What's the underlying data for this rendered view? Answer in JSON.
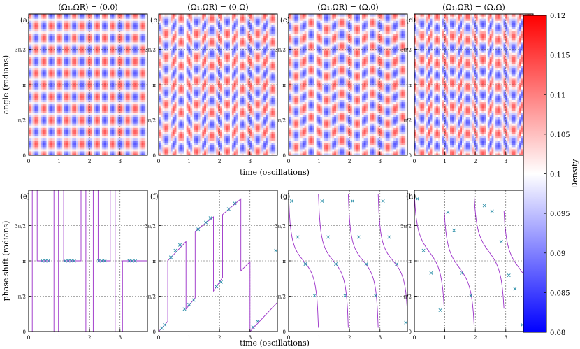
{
  "figure": {
    "panel_titles": [
      "(Ω₁,ΩR) = (0,0)",
      "(Ω₁,ΩR) = (0,Ω)",
      "(Ω₁,ΩR) = (Ω,0)",
      "(Ω₁,ΩR) = (Ω,Ω)"
    ],
    "title_parts": [
      {
        "a": "0",
        "b": "0"
      },
      {
        "a": "0",
        "b": "Ω"
      },
      {
        "a": "Ω",
        "b": "0"
      },
      {
        "a": "Ω",
        "b": "Ω"
      }
    ],
    "panel_letters_top": [
      "(a)",
      "(b)",
      "(c)",
      "(d)"
    ],
    "panel_letters_bottom": [
      "(e)",
      "(f)",
      "(g)",
      "(h)"
    ],
    "top_ylabel": "angle (radians)",
    "bottom_ylabel": "phase shift (radians)",
    "xlabel": "time (oscillations)",
    "y_tick_labels": [
      "0",
      "π/2",
      "π",
      "3π/2"
    ],
    "x_tick_labels": [
      "0",
      "1",
      "2",
      "3"
    ],
    "colorbar": {
      "label": "Density",
      "ticks": [
        "0.12",
        "0.115",
        "0.11",
        "0.105",
        "0.1",
        "0.095",
        "0.09",
        "0.085",
        "0.08"
      ],
      "min": 0.08,
      "max": 0.12,
      "color_low": "#0000ff",
      "color_mid": "#ffffff",
      "color_high": "#ff0000"
    },
    "colors": {
      "line": "#9b30c8",
      "marker": "#2a8fa8",
      "grid": "#555555"
    }
  },
  "chart_data": [
    {
      "type": "heatmap",
      "panel": "(a)",
      "xlim": [
        0,
        3.9
      ],
      "ylim": [
        0,
        6.283
      ],
      "x_period": 0.5,
      "y_period": 1.0472,
      "shear": 0
    },
    {
      "type": "heatmap",
      "panel": "(b)",
      "xlim": [
        0,
        3.9
      ],
      "ylim": [
        0,
        6.283
      ],
      "x_period": 0.5,
      "y_period": 1.0472,
      "shear": 0.35
    },
    {
      "type": "heatmap",
      "panel": "(c)",
      "xlim": [
        0,
        3.9
      ],
      "ylim": [
        0,
        6.283
      ],
      "x_period": 0.5,
      "y_period": 1.0472,
      "shear": 0.15
    },
    {
      "type": "heatmap",
      "panel": "(d)",
      "xlim": [
        0,
        3.9
      ],
      "ylim": [
        0,
        6.283
      ],
      "x_period": 0.5,
      "y_period": 1.0472,
      "shear": 0.45
    },
    {
      "type": "line",
      "panel": "(e)",
      "xlim": [
        0,
        3.9
      ],
      "ylim": [
        0,
        6.283
      ],
      "x": [
        0,
        0.12,
        0.12,
        0.28,
        0.28,
        0.7,
        0.7,
        0.83,
        0.83,
        0.98,
        0.98,
        1.15,
        1.15,
        1.72,
        1.72,
        1.88,
        1.88,
        2.12,
        2.12,
        2.28,
        2.28,
        2.68,
        2.68,
        2.84,
        2.84,
        3.08,
        3.08,
        3.9
      ],
      "y": [
        0,
        0,
        6.283,
        6.283,
        3.1416,
        3.1416,
        6.283,
        6.283,
        0,
        0,
        6.283,
        6.283,
        3.1416,
        3.1416,
        6.283,
        6.283,
        0,
        0,
        6.283,
        6.283,
        3.1416,
        3.1416,
        6.283,
        6.283,
        0,
        0,
        3.1416,
        3.1416
      ],
      "markers_x": [
        0.45,
        0.55,
        0.65,
        1.2,
        1.3,
        1.4,
        1.5,
        2.3,
        2.4,
        2.5,
        3.3,
        3.4,
        3.5
      ],
      "markers_y": [
        3.1416,
        3.1416,
        3.1416,
        3.1416,
        3.1416,
        3.1416,
        3.1416,
        3.1416,
        3.1416,
        3.1416,
        3.1416,
        3.1416,
        3.1416
      ]
    },
    {
      "type": "line",
      "panel": "(f)",
      "xlim": [
        0,
        3.9
      ],
      "ylim": [
        0,
        6.283
      ],
      "x": [
        0,
        0.3,
        0.3,
        0.9,
        0.9,
        1.2,
        1.2,
        1.8,
        1.8,
        2.1,
        2.1,
        2.7,
        2.7,
        3.0,
        3.0,
        3.9
      ],
      "y": [
        0,
        0.45,
        3.14,
        4.0,
        1.0,
        1.5,
        4.45,
        5.1,
        1.8,
        2.4,
        5.2,
        5.9,
        2.7,
        3.1,
        0,
        1.3
      ],
      "markers_x": [
        0.1,
        0.2,
        0.4,
        0.55,
        0.7,
        0.85,
        1.0,
        1.15,
        1.3,
        1.55,
        1.7,
        1.9,
        2.05,
        2.3,
        2.5,
        3.1,
        3.25,
        3.85
      ],
      "markers_y": [
        0.15,
        0.3,
        3.3,
        3.6,
        3.85,
        1.0,
        1.2,
        1.4,
        4.55,
        4.85,
        5.05,
        2.0,
        2.2,
        5.45,
        5.7,
        0.2,
        0.45,
        3.6
      ]
    },
    {
      "type": "line",
      "panel": "(g)",
      "xlim": [
        0,
        3.9
      ],
      "ylim": [
        0,
        6.283
      ],
      "curve": "staircase_down",
      "steps": 4,
      "markers_x": [
        0.1,
        0.3,
        0.55,
        0.85,
        1.1,
        1.3,
        1.55,
        1.85,
        2.1,
        2.3,
        2.55,
        2.85,
        3.1,
        3.3,
        3.55,
        3.85
      ],
      "markers_y": [
        5.8,
        4.2,
        3.0,
        1.6,
        5.8,
        4.2,
        3.0,
        1.6,
        5.8,
        4.2,
        3.0,
        1.6,
        5.8,
        4.2,
        3.0,
        0.4
      ]
    },
    {
      "type": "line",
      "panel": "(h)",
      "xlim": [
        0,
        3.9
      ],
      "ylim": [
        0,
        6.283
      ],
      "curve": "staircase_down_shifted",
      "steps": 4,
      "markers_x": [
        0.1,
        0.3,
        0.55,
        0.85,
        1.1,
        1.3,
        1.55,
        1.85,
        2.3,
        2.55,
        2.85,
        3.1,
        3.3,
        3.55,
        3.85
      ],
      "markers_y": [
        5.9,
        3.6,
        2.6,
        0.95,
        5.3,
        4.5,
        2.6,
        1.6,
        5.6,
        5.35,
        4.0,
        2.5,
        1.9,
        0.3,
        4.2
      ]
    }
  ]
}
